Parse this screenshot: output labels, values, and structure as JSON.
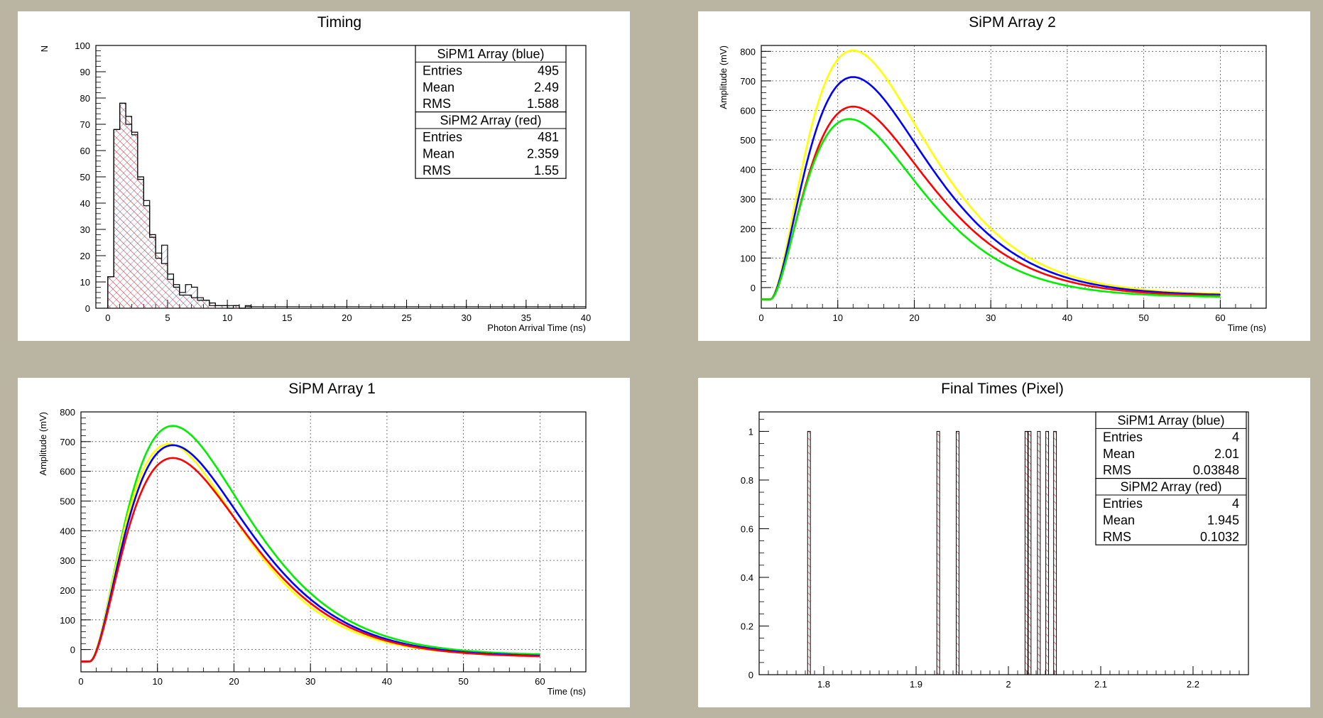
{
  "colors": {
    "background": "#bab4a2",
    "pad": "#ffffff",
    "blue": "#0000ff",
    "red": "#ff0000",
    "green": "#00ee00",
    "yellow": "#ffff00",
    "hist_red_hatch": "#d33a3a",
    "hist_blue_hatch": "#3a5fb0"
  },
  "chart_data": [
    {
      "id": "timing",
      "type": "bar",
      "title": "Timing",
      "xlabel": "Photon Arrival Time (ns)",
      "ylabel": "N",
      "xlim": [
        -1,
        40
      ],
      "ylim": [
        0,
        100
      ],
      "xticks": [
        0,
        5,
        10,
        15,
        20,
        25,
        30,
        35,
        40
      ],
      "yticks": [
        0,
        10,
        20,
        30,
        40,
        50,
        60,
        70,
        80,
        90,
        100
      ],
      "grid": false,
      "legend_placement": "top-right",
      "bin_width": 0.5,
      "series": [
        {
          "name": "SiPM1 Array (blue)",
          "x": [
            0,
            0.5,
            1,
            1.5,
            2,
            2.5,
            3,
            3.5,
            4,
            4.5,
            5,
            5.5,
            6,
            6.5,
            7,
            7.5,
            8,
            8.5,
            9,
            9.5,
            10,
            10.5,
            11,
            11.5
          ],
          "values": [
            12,
            68,
            78,
            70,
            67,
            50,
            41,
            27,
            19,
            24,
            13,
            8,
            6,
            9,
            8,
            4,
            3,
            2,
            1,
            1,
            1,
            1,
            0,
            1
          ]
        },
        {
          "name": "SiPM2 Array (red)",
          "x": [
            0,
            0.5,
            1,
            1.5,
            2,
            2.5,
            3,
            3.5,
            4,
            4.5,
            5,
            5.5,
            6,
            6.5,
            7,
            7.5,
            8,
            8.5,
            9,
            9.5,
            10,
            10.5,
            11,
            11.5
          ],
          "values": [
            12,
            68,
            78,
            73,
            66,
            49,
            39,
            28,
            21,
            17,
            11,
            9,
            5,
            5,
            4,
            3,
            3,
            1,
            1,
            1,
            0,
            1,
            0,
            0
          ]
        }
      ],
      "stats": [
        {
          "header": "SiPM1 Array (blue)",
          "rows": [
            [
              "Entries",
              "495"
            ],
            [
              "Mean",
              "2.49"
            ],
            [
              "RMS",
              "1.588"
            ]
          ]
        },
        {
          "header": "SiPM2 Array (red)",
          "rows": [
            [
              "Entries",
              "481"
            ],
            [
              "Mean",
              "2.359"
            ],
            [
              "RMS",
              "1.55"
            ]
          ]
        }
      ]
    },
    {
      "id": "array2",
      "type": "line",
      "title": "SiPM Array 2",
      "xlabel": "Time (ns)",
      "ylabel": "Amplitude (mV)",
      "xlim": [
        0,
        66
      ],
      "ylim": [
        -70,
        820
      ],
      "xticks": [
        0,
        10,
        20,
        30,
        40,
        50,
        60
      ],
      "yticks": [
        0,
        100,
        200,
        300,
        400,
        500,
        600,
        700,
        800
      ],
      "grid": true,
      "series": [
        {
          "color": "yellow",
          "peak": 803,
          "tpeak": 12,
          "end": -25
        },
        {
          "color": "blue",
          "peak": 713,
          "tpeak": 12,
          "end": -28
        },
        {
          "color": "red",
          "peak": 613,
          "tpeak": 12,
          "end": -31
        },
        {
          "color": "green",
          "peak": 571,
          "tpeak": 11.5,
          "end": -33
        }
      ]
    },
    {
      "id": "array1",
      "type": "line",
      "title": "SiPM Array 1",
      "xlabel": "Time (ns)",
      "ylabel": "Amplitude (mV)",
      "xlim": [
        0,
        66
      ],
      "ylim": [
        -75,
        800
      ],
      "xticks": [
        0,
        10,
        20,
        30,
        40,
        50,
        60
      ],
      "yticks": [
        0,
        100,
        200,
        300,
        400,
        500,
        600,
        700,
        800
      ],
      "grid": true,
      "series": [
        {
          "color": "green",
          "peak": 753,
          "tpeak": 12,
          "end": -20
        },
        {
          "color": "yellow",
          "peak": 692,
          "tpeak": 11.5,
          "end": -22
        },
        {
          "color": "blue",
          "peak": 688,
          "tpeak": 12,
          "end": -24
        },
        {
          "color": "red",
          "peak": 645,
          "tpeak": 12,
          "end": -26
        }
      ]
    },
    {
      "id": "final",
      "type": "bar",
      "title": "Final Times (Pixel)",
      "xlabel": "",
      "ylabel": "",
      "xlim": [
        1.73,
        2.26
      ],
      "ylim": [
        0,
        1.08
      ],
      "xticks": [
        1.8,
        1.9,
        2,
        2.1,
        2.2
      ],
      "xticklabels": [
        "1.8",
        "1.9",
        "2",
        "2.1",
        "2.2"
      ],
      "yticks": [
        0,
        0.2,
        0.4,
        0.6,
        0.8,
        1
      ],
      "yticklabels": [
        "0",
        "0.2",
        "0.4",
        "0.6",
        "0.8",
        "1"
      ],
      "grid": false,
      "legend_placement": "top-right",
      "bin_width": 0.003,
      "bins": [
        1.7825,
        1.9225,
        1.9435,
        2.018,
        2.0215,
        2.0315,
        2.0405,
        2.049
      ],
      "values": [
        1,
        1,
        1,
        1,
        1,
        1,
        1,
        1
      ],
      "stats": [
        {
          "header": "SiPM1 Array (blue)",
          "rows": [
            [
              "Entries",
              "4"
            ],
            [
              "Mean",
              "2.01"
            ],
            [
              "RMS",
              "0.03848"
            ]
          ]
        },
        {
          "header": "SiPM2 Array (red)",
          "rows": [
            [
              "Entries",
              "4"
            ],
            [
              "Mean",
              "1.945"
            ],
            [
              "RMS",
              "0.1032"
            ]
          ]
        }
      ]
    }
  ]
}
